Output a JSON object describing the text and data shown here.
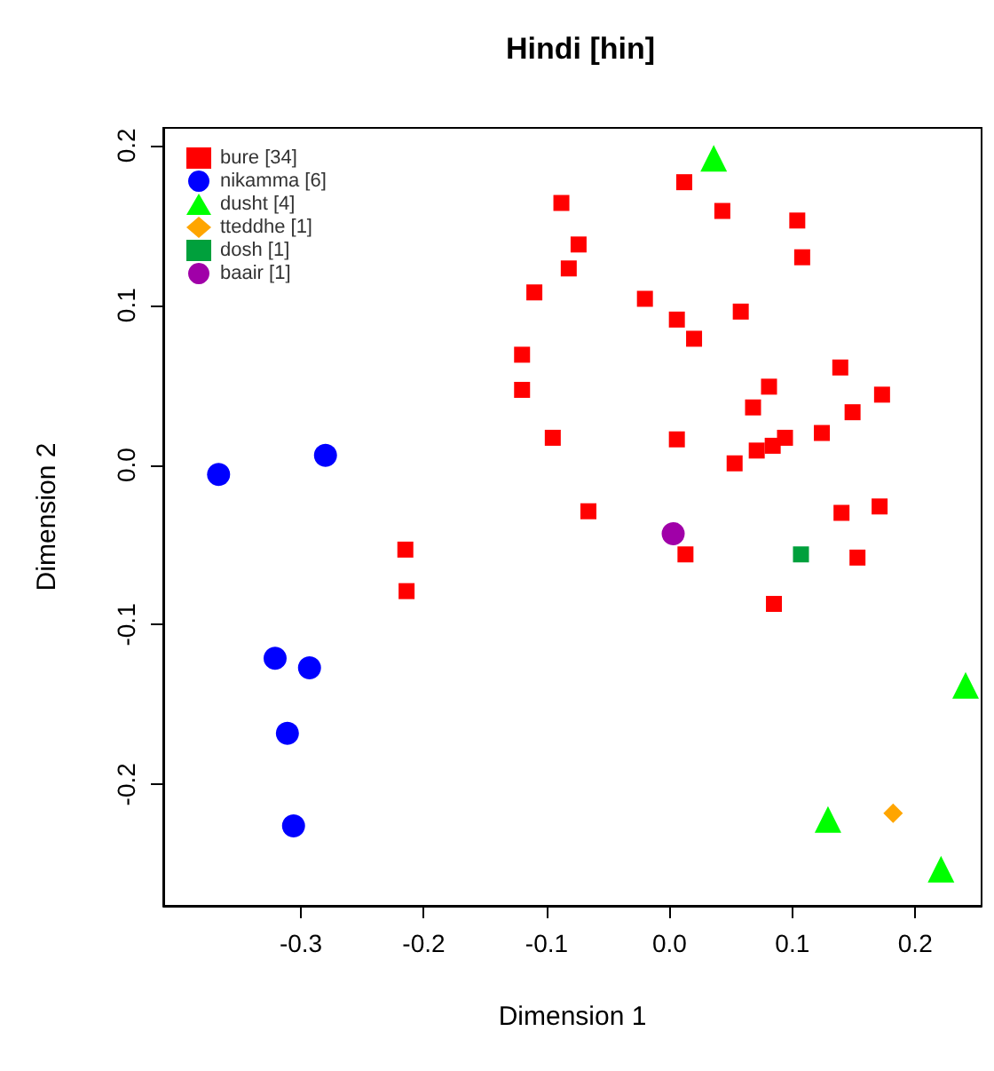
{
  "chart_data": {
    "type": "scatter",
    "title": "Hindi [hin]",
    "xlabel": "Dimension 1",
    "ylabel": "Dimension 2",
    "xlim": [
      -0.412,
      0.254
    ],
    "ylim": [
      -0.276,
      0.211
    ],
    "xticks": [
      -0.3,
      -0.2,
      -0.1,
      {
        "value": 0,
        "label": "0.0"
      },
      0.1,
      0.2
    ],
    "yticks": [
      -0.2,
      -0.1,
      {
        "value": 0,
        "label": "0.0"
      },
      0.1,
      0.2
    ],
    "grid": false,
    "legend": "top left",
    "series": [
      {
        "name": "bure [34]",
        "color": "#ff0000",
        "marker": "square",
        "x": [
          -0.215,
          -0.214,
          -0.12,
          -0.12,
          -0.095,
          -0.066,
          -0.088,
          -0.074,
          -0.082,
          -0.11,
          0.012,
          0.043,
          0.104,
          0.108,
          -0.02,
          0.006,
          0.02,
          0.058,
          0.139,
          0.081,
          0.173,
          0.068,
          0.149,
          0.124,
          0.094,
          0.084,
          0.071,
          0.053,
          0.006,
          0.14,
          0.171,
          0.013,
          0.085,
          0.153
        ],
        "values": [
          -0.053,
          -0.079,
          0.069,
          0.047,
          0.017,
          -0.029,
          0.164,
          0.138,
          0.123,
          0.108,
          0.177,
          0.159,
          0.153,
          0.13,
          0.104,
          0.091,
          0.079,
          0.096,
          0.061,
          0.049,
          0.044,
          0.036,
          0.033,
          0.02,
          0.017,
          0.012,
          0.009,
          0.001,
          0.016,
          -0.03,
          -0.026,
          -0.056,
          -0.087,
          -0.058
        ]
      },
      {
        "name": "nikamma [6]",
        "color": "#0000ff",
        "marker": "circle",
        "x": [
          -0.367,
          -0.28,
          -0.321,
          -0.293,
          -0.311,
          -0.306
        ],
        "values": [
          -0.006,
          0.006,
          -0.121,
          -0.127,
          -0.168,
          -0.226
        ]
      },
      {
        "name": "dusht [4]",
        "color": "#00ff00",
        "marker": "triangle",
        "x": [
          0.036,
          0.241,
          0.129,
          0.221
        ],
        "values": [
          0.192,
          -0.138,
          -0.222,
          -0.253
        ]
      },
      {
        "name": "tteddhe [1]",
        "color": "#ffa500",
        "marker": "diamond",
        "x": [
          0.182
        ],
        "values": [
          -0.218
        ]
      },
      {
        "name": "dosh [1]",
        "color": "#00a03c",
        "marker": "square",
        "x": [
          0.107
        ],
        "values": [
          -0.056
        ]
      },
      {
        "name": "baair [1]",
        "color": "#a000a8",
        "marker": "circle",
        "x": [
          0.003
        ],
        "values": [
          -0.043
        ]
      }
    ]
  }
}
